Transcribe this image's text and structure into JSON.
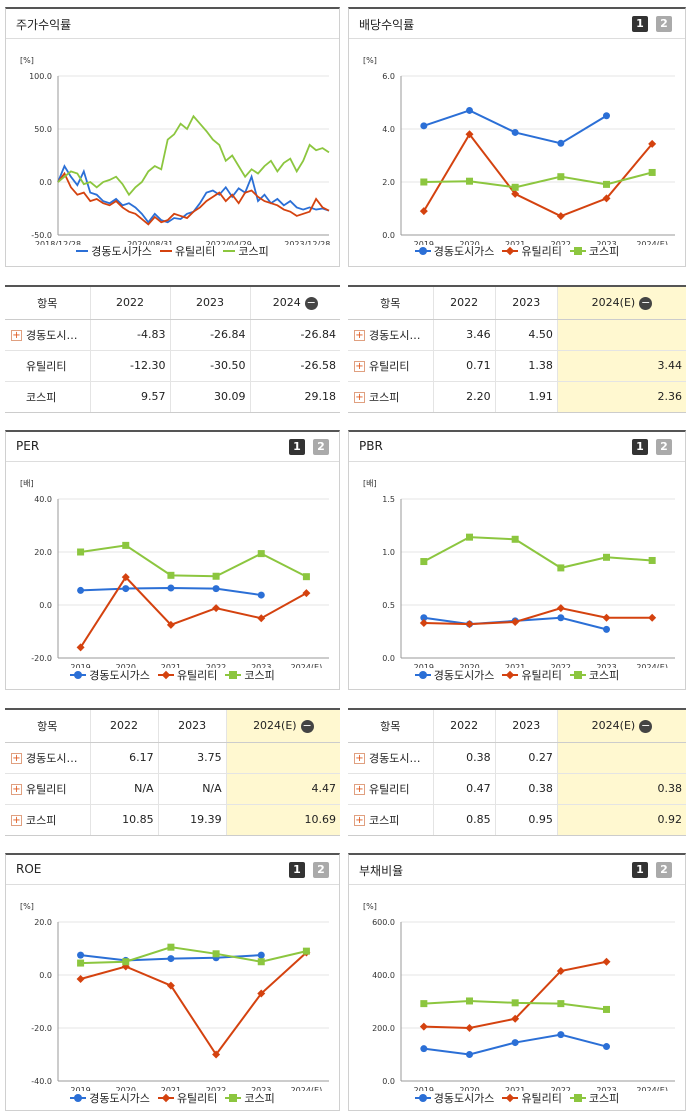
{
  "legend": {
    "s1": "경동도시가스",
    "s2": "유틸리티",
    "s3": "코스피"
  },
  "colors": {
    "s1": "#2b6fd6",
    "s2": "#d4420f",
    "s3": "#8cc63f"
  },
  "toggle": {
    "one": "1",
    "two": "2"
  },
  "panels": {
    "price": {
      "title": "주가수익률",
      "unit": "[%]"
    },
    "div": {
      "title": "배당수익률",
      "unit": "[%]"
    },
    "per": {
      "title": "PER",
      "unit": "[배]"
    },
    "pbr": {
      "title": "PBR",
      "unit": "[배]"
    },
    "roe": {
      "title": "ROE",
      "unit": "[%]"
    },
    "debt": {
      "title": "부채비율",
      "unit": "[%]"
    }
  },
  "tables": {
    "price": {
      "header": [
        "항목",
        "2022",
        "2023",
        "2024"
      ],
      "rows": [
        {
          "name": "경동도시…",
          "plus": true,
          "v": [
            "-4.83",
            "-26.84",
            "-26.84"
          ]
        },
        {
          "name": "유틸리티",
          "plus": false,
          "v": [
            "-12.30",
            "-30.50",
            "-26.58"
          ]
        },
        {
          "name": "코스피",
          "plus": false,
          "v": [
            "9.57",
            "30.09",
            "29.18"
          ]
        }
      ]
    },
    "div": {
      "header": [
        "항목",
        "2022",
        "2023",
        "2024(E)"
      ],
      "rows": [
        {
          "name": "경동도시…",
          "plus": true,
          "v": [
            "3.46",
            "4.50",
            ""
          ]
        },
        {
          "name": "유틸리티",
          "plus": true,
          "v": [
            "0.71",
            "1.38",
            "3.44"
          ]
        },
        {
          "name": "코스피",
          "plus": true,
          "v": [
            "2.20",
            "1.91",
            "2.36"
          ]
        }
      ]
    },
    "per": {
      "header": [
        "항목",
        "2022",
        "2023",
        "2024(E)"
      ],
      "rows": [
        {
          "name": "경동도시…",
          "plus": true,
          "v": [
            "6.17",
            "3.75",
            ""
          ]
        },
        {
          "name": "유틸리티",
          "plus": true,
          "v": [
            "N/A",
            "N/A",
            "4.47"
          ]
        },
        {
          "name": "코스피",
          "plus": true,
          "v": [
            "10.85",
            "19.39",
            "10.69"
          ]
        }
      ]
    },
    "pbr": {
      "header": [
        "항목",
        "2022",
        "2023",
        "2024(E)"
      ],
      "rows": [
        {
          "name": "경동도시…",
          "plus": true,
          "v": [
            "0.38",
            "0.27",
            ""
          ]
        },
        {
          "name": "유틸리티",
          "plus": true,
          "v": [
            "0.47",
            "0.38",
            "0.38"
          ]
        },
        {
          "name": "코스피",
          "plus": true,
          "v": [
            "0.85",
            "0.95",
            "0.92"
          ]
        }
      ]
    }
  },
  "chart_data": [
    {
      "id": "price",
      "type": "line",
      "ylim": [
        -50,
        100
      ],
      "yticks": [
        "100.0",
        "50.0",
        "0.0",
        "-50.0"
      ],
      "x_labels": [
        "2018/12/28",
        "2020/08/31",
        "2022/04/29",
        "2023/12/28"
      ],
      "series": [
        {
          "name": "경동도시가스",
          "values": [
            0,
            15,
            5,
            -3,
            10,
            -10,
            -12,
            -18,
            -20,
            -16,
            -22,
            -20,
            -24,
            -30,
            -38,
            -30,
            -36,
            -38,
            -34,
            -35,
            -30,
            -28,
            -20,
            -10,
            -8,
            -12,
            -5,
            -14,
            -6,
            -10,
            5,
            -18,
            -12,
            -20,
            -16,
            -22,
            -18,
            -24,
            -26,
            -24,
            -26,
            -25,
            -27
          ]
        },
        {
          "name": "유틸리티",
          "values": [
            0,
            8,
            -5,
            -12,
            -10,
            -18,
            -16,
            -20,
            -22,
            -18,
            -24,
            -28,
            -30,
            -35,
            -40,
            -33,
            -38,
            -36,
            -30,
            -32,
            -34,
            -28,
            -24,
            -18,
            -14,
            -10,
            -18,
            -12,
            -20,
            -10,
            -8,
            -14,
            -18,
            -20,
            -22,
            -26,
            -28,
            -32,
            -30,
            -28,
            -16,
            -24,
            -27
          ]
        },
        {
          "name": "코스피",
          "values": [
            0,
            5,
            10,
            8,
            -2,
            0,
            -5,
            0,
            2,
            5,
            -2,
            -12,
            -5,
            0,
            10,
            15,
            12,
            40,
            45,
            55,
            50,
            62,
            55,
            48,
            40,
            35,
            20,
            25,
            15,
            5,
            12,
            8,
            15,
            20,
            10,
            18,
            22,
            10,
            20,
            35,
            30,
            32,
            28
          ]
        }
      ]
    },
    {
      "id": "div",
      "type": "line",
      "ylim": [
        0,
        6
      ],
      "yticks": [
        "6.0",
        "4.0",
        "2.0",
        "0.0"
      ],
      "categories": [
        "2019",
        "2020",
        "2021",
        "2022",
        "2023",
        "2024(E)"
      ],
      "series": [
        {
          "name": "경동도시가스",
          "values": [
            4.12,
            4.7,
            3.87,
            3.46,
            4.5,
            null
          ]
        },
        {
          "name": "유틸리티",
          "values": [
            0.9,
            3.8,
            1.55,
            0.71,
            1.38,
            3.44
          ]
        },
        {
          "name": "코스피",
          "values": [
            2.0,
            2.03,
            1.8,
            2.2,
            1.91,
            2.36
          ]
        }
      ]
    },
    {
      "id": "per",
      "type": "line",
      "ylim": [
        -20,
        40
      ],
      "yticks": [
        "40.0",
        "20.0",
        "0.0",
        "-20.0"
      ],
      "categories": [
        "2019",
        "2020",
        "2021",
        "2022",
        "2023",
        "2024(E)"
      ],
      "series": [
        {
          "name": "경동도시가스",
          "values": [
            5.5,
            6.2,
            6.4,
            6.17,
            3.75,
            null
          ]
        },
        {
          "name": "유틸리티",
          "values": [
            -16,
            10.5,
            -7.5,
            -1.2,
            -5,
            4.47
          ]
        },
        {
          "name": "코스피",
          "values": [
            20,
            22.5,
            11.2,
            10.85,
            19.39,
            10.69
          ]
        }
      ]
    },
    {
      "id": "pbr",
      "type": "line",
      "ylim": [
        0,
        1.5
      ],
      "yticks": [
        "1.5",
        "1.0",
        "0.5",
        "0.0"
      ],
      "categories": [
        "2019",
        "2020",
        "2021",
        "2022",
        "2023",
        "2024(E)"
      ],
      "series": [
        {
          "name": "경동도시가스",
          "values": [
            0.38,
            0.32,
            0.35,
            0.38,
            0.27,
            null
          ]
        },
        {
          "name": "유틸리티",
          "values": [
            0.33,
            0.32,
            0.34,
            0.47,
            0.38,
            0.38
          ]
        },
        {
          "name": "코스피",
          "values": [
            0.91,
            1.14,
            1.12,
            0.85,
            0.95,
            0.92
          ]
        }
      ]
    },
    {
      "id": "roe",
      "type": "line",
      "ylim": [
        -40,
        20
      ],
      "yticks": [
        "20.0",
        "0.0",
        "-20.0",
        "-40.0"
      ],
      "categories": [
        "2019",
        "2020",
        "2021",
        "2022",
        "2023",
        "2024(E)"
      ],
      "series": [
        {
          "name": "경동도시가스",
          "values": [
            7.5,
            5.5,
            6.2,
            6.5,
            7.5,
            null
          ]
        },
        {
          "name": "유틸리티",
          "values": [
            -1.5,
            3.2,
            -4,
            -30,
            -7,
            8.5
          ]
        },
        {
          "name": "코스피",
          "values": [
            4.5,
            5,
            10.5,
            8,
            5,
            9
          ]
        }
      ]
    },
    {
      "id": "debt",
      "type": "line",
      "ylim": [
        0,
        600
      ],
      "yticks": [
        "600.0",
        "400.0",
        "200.0",
        "0.0"
      ],
      "categories": [
        "2019",
        "2020",
        "2021",
        "2022",
        "2023",
        "2024(E)"
      ],
      "series": [
        {
          "name": "경동도시가스",
          "values": [
            122,
            100,
            145,
            175,
            130,
            null
          ]
        },
        {
          "name": "유틸리티",
          "values": [
            205,
            200,
            235,
            415,
            450,
            null
          ]
        },
        {
          "name": "코스피",
          "values": [
            292,
            302,
            295,
            292,
            270,
            null
          ]
        }
      ]
    }
  ]
}
